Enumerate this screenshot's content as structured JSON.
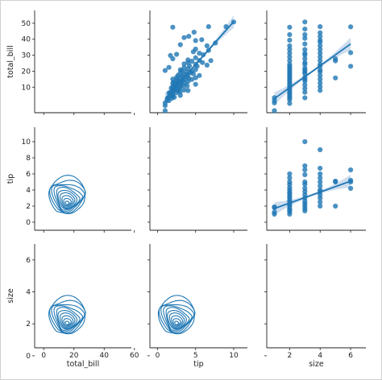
{
  "figure": {
    "type": "pairgrid",
    "variables": [
      "total_bill",
      "tip",
      "size"
    ],
    "accent_color": "#1f77b4",
    "ci_color": "#c6d8ec"
  },
  "axes": {
    "total_bill": {
      "label": "total_bill",
      "range": [
        -6,
        58
      ],
      "ticks": [
        0,
        20,
        40,
        60
      ]
    },
    "tip": {
      "label": "tip",
      "range": [
        -1,
        11.8
      ],
      "ticks": [
        0,
        5,
        10
      ]
    },
    "size": {
      "label": "size",
      "range": [
        0.5,
        7.0
      ],
      "ticks": [
        2,
        4,
        6
      ]
    }
  },
  "y_ticks": {
    "total_bill": [
      10,
      20,
      30,
      40,
      50
    ],
    "tip": [
      0,
      2,
      4,
      6,
      8,
      10
    ],
    "size": [
      0,
      2,
      4,
      6
    ]
  },
  "chart_data": [
    {
      "panel": "total_bill vs tip",
      "type": "scatter",
      "x_var": "tip",
      "y_var": "total_bill",
      "xlim": [
        -1,
        11.8
      ],
      "ylim": [
        2,
        57
      ],
      "regression": {
        "x": [
          1.0,
          10.0
        ],
        "y": [
          9.5,
          51.0
        ]
      },
      "points": [
        [
          1.0,
          3.1
        ],
        [
          1.0,
          5.8
        ],
        [
          1.0,
          7.3
        ],
        [
          1.25,
          8.8
        ],
        [
          1.4,
          10.1
        ],
        [
          1.5,
          12.5
        ],
        [
          1.5,
          8.5
        ],
        [
          1.6,
          10.6
        ],
        [
          1.7,
          13.0
        ],
        [
          1.8,
          15.3
        ],
        [
          1.9,
          9.8
        ],
        [
          2.0,
          12.0
        ],
        [
          2.0,
          13.4
        ],
        [
          2.0,
          14.8
        ],
        [
          2.0,
          16.2
        ],
        [
          2.0,
          17.8
        ],
        [
          2.0,
          11.0
        ],
        [
          2.0,
          20.1
        ],
        [
          2.1,
          18.5
        ],
        [
          2.2,
          14.0
        ],
        [
          2.2,
          10.3
        ],
        [
          2.3,
          15.8
        ],
        [
          2.4,
          17.2
        ],
        [
          2.5,
          12.8
        ],
        [
          2.5,
          18.2
        ],
        [
          2.5,
          19.7
        ],
        [
          2.5,
          21.0
        ],
        [
          2.5,
          14.5
        ],
        [
          2.6,
          16.9
        ],
        [
          2.7,
          22.2
        ],
        [
          2.7,
          13.8
        ],
        [
          2.8,
          19.0
        ],
        [
          2.9,
          15.2
        ],
        [
          3.0,
          16.0
        ],
        [
          3.0,
          18.4
        ],
        [
          3.0,
          20.6
        ],
        [
          3.0,
          23.3
        ],
        [
          3.0,
          13.3
        ],
        [
          3.0,
          25.1
        ],
        [
          3.0,
          11.3
        ],
        [
          3.1,
          17.5
        ],
        [
          3.2,
          21.8
        ],
        [
          3.2,
          24.6
        ],
        [
          3.3,
          19.4
        ],
        [
          3.4,
          16.6
        ],
        [
          3.5,
          20.0
        ],
        [
          3.5,
          22.6
        ],
        [
          3.5,
          26.4
        ],
        [
          3.5,
          14.2
        ],
        [
          3.5,
          28.3
        ],
        [
          3.6,
          18.0
        ],
        [
          3.7,
          24.1
        ],
        [
          3.8,
          21.3
        ],
        [
          3.9,
          16.4
        ],
        [
          4.0,
          18.8
        ],
        [
          4.0,
          22.4
        ],
        [
          4.0,
          25.7
        ],
        [
          4.0,
          28.9
        ],
        [
          4.0,
          30.4
        ],
        [
          4.0,
          13.9
        ],
        [
          4.1,
          20.5
        ],
        [
          4.2,
          27.2
        ],
        [
          4.3,
          23.6
        ],
        [
          4.5,
          19.9
        ],
        [
          4.5,
          24.3
        ],
        [
          4.5,
          29.7
        ],
        [
          4.7,
          22.9
        ],
        [
          4.7,
          34.8
        ],
        [
          5.0,
          17.3
        ],
        [
          5.0,
          20.8
        ],
        [
          5.0,
          25.2
        ],
        [
          5.0,
          28.1
        ],
        [
          5.0,
          31.6
        ],
        [
          5.0,
          36.2
        ],
        [
          5.0,
          40.8
        ],
        [
          5.2,
          27.0
        ],
        [
          5.5,
          22.0
        ],
        [
          5.5,
          30.1
        ],
        [
          5.5,
          34.0
        ],
        [
          5.9,
          29.0
        ],
        [
          6.0,
          33.2
        ],
        [
          6.5,
          27.6
        ],
        [
          6.5,
          38.0
        ],
        [
          6.7,
          35.5
        ],
        [
          7.0,
          30.0
        ],
        [
          7.6,
          39.5
        ],
        [
          9.0,
          48.3
        ],
        [
          10.0,
          50.8
        ],
        [
          2.0,
          31.0
        ],
        [
          2.5,
          33.4
        ],
        [
          3.0,
          38.6
        ],
        [
          3.5,
          42.4
        ],
        [
          2.0,
          48.0
        ],
        [
          4.1,
          43.1
        ],
        [
          1.5,
          26.4
        ],
        [
          1.7,
          32.8
        ],
        [
          1.0,
          24.7
        ],
        [
          4.8,
          45.3
        ],
        [
          5.8,
          41.3
        ],
        [
          6.7,
          48.3
        ]
      ]
    },
    {
      "panel": "total_bill vs size",
      "type": "scatter",
      "x_var": "size",
      "y_var": "total_bill",
      "xlim": [
        0.5,
        7.0
      ],
      "ylim": [
        2,
        57
      ],
      "regression": {
        "x": [
          1.0,
          6.0
        ],
        "y": [
          9.6,
          39.0
        ]
      },
      "columns": [
        {
          "x": 1,
          "y": [
            3.1,
            7.3,
            8.6,
            10.1
          ]
        },
        {
          "x": 2,
          "y": [
            7,
            9,
            10,
            11,
            12,
            13,
            14,
            15,
            16,
            17,
            18,
            19,
            20,
            21,
            22,
            23,
            24,
            25,
            26,
            27,
            28,
            30,
            32,
            34,
            36,
            38,
            41,
            44,
            48
          ]
        },
        {
          "x": 3,
          "y": [
            10,
            13,
            15,
            17,
            19,
            20,
            21,
            23,
            24,
            25,
            26,
            28,
            29,
            31,
            33,
            34,
            36,
            39,
            42,
            44,
            47,
            50.8
          ]
        },
        {
          "x": 4,
          "y": [
            14,
            16,
            18,
            20,
            22,
            24,
            25,
            27,
            28,
            30,
            32,
            34,
            36,
            38,
            40,
            41,
            43,
            45,
            48.3
          ]
        },
        {
          "x": 5,
          "y": [
            20.7,
            29.9,
            31.0
          ]
        },
        {
          "x": 6,
          "y": [
            27.0,
            34.3,
            48.2
          ]
        }
      ]
    },
    {
      "panel": "tip vs size",
      "type": "scatter",
      "x_var": "size",
      "y_var": "tip",
      "xlim": [
        0.5,
        7.0
      ],
      "ylim": [
        -1,
        11.8
      ],
      "regression": {
        "x": [
          1.0,
          6.0
        ],
        "y": [
          1.7,
          5.1
        ]
      },
      "columns": [
        {
          "x": 1,
          "y": [
            1.0,
            1.25,
            1.8,
            1.9
          ]
        },
        {
          "x": 2,
          "y": [
            1.0,
            1.3,
            1.5,
            1.7,
            2.0,
            2.2,
            2.5,
            2.7,
            3.0,
            3.2,
            3.5,
            3.7,
            4.0,
            4.3,
            4.7,
            5.0,
            5.5,
            6.0
          ]
        },
        {
          "x": 3,
          "y": [
            1.4,
            1.7,
            2.0,
            2.3,
            2.6,
            3.0,
            3.4,
            3.8,
            4.2,
            4.7,
            5.0,
            5.9,
            6.5,
            7.0,
            10.0
          ]
        },
        {
          "x": 4,
          "y": [
            2.0,
            2.5,
            3.0,
            3.4,
            3.8,
            4.0,
            4.5,
            5.0,
            5.5,
            6.0,
            6.7,
            9.0
          ]
        },
        {
          "x": 5,
          "y": [
            2.0,
            5.0,
            5.1
          ]
        },
        {
          "x": 6,
          "y": [
            4.2,
            5.0,
            5.2,
            6.5
          ]
        }
      ]
    },
    {
      "panel": "tip vs total_bill",
      "type": "kde",
      "x_var": "total_bill",
      "y_var": "tip",
      "peak": {
        "x": 15.5,
        "y": 2.3
      },
      "levels": 10
    },
    {
      "panel": "size vs total_bill",
      "type": "kde",
      "x_var": "total_bill",
      "y_var": "size",
      "peak": {
        "x": 15.5,
        "y": 2.0
      },
      "levels": 10
    },
    {
      "panel": "size vs tip",
      "type": "kde",
      "x_var": "tip",
      "y_var": "size",
      "peak": {
        "x": 2.5,
        "y": 2.0
      },
      "levels": 10
    }
  ]
}
